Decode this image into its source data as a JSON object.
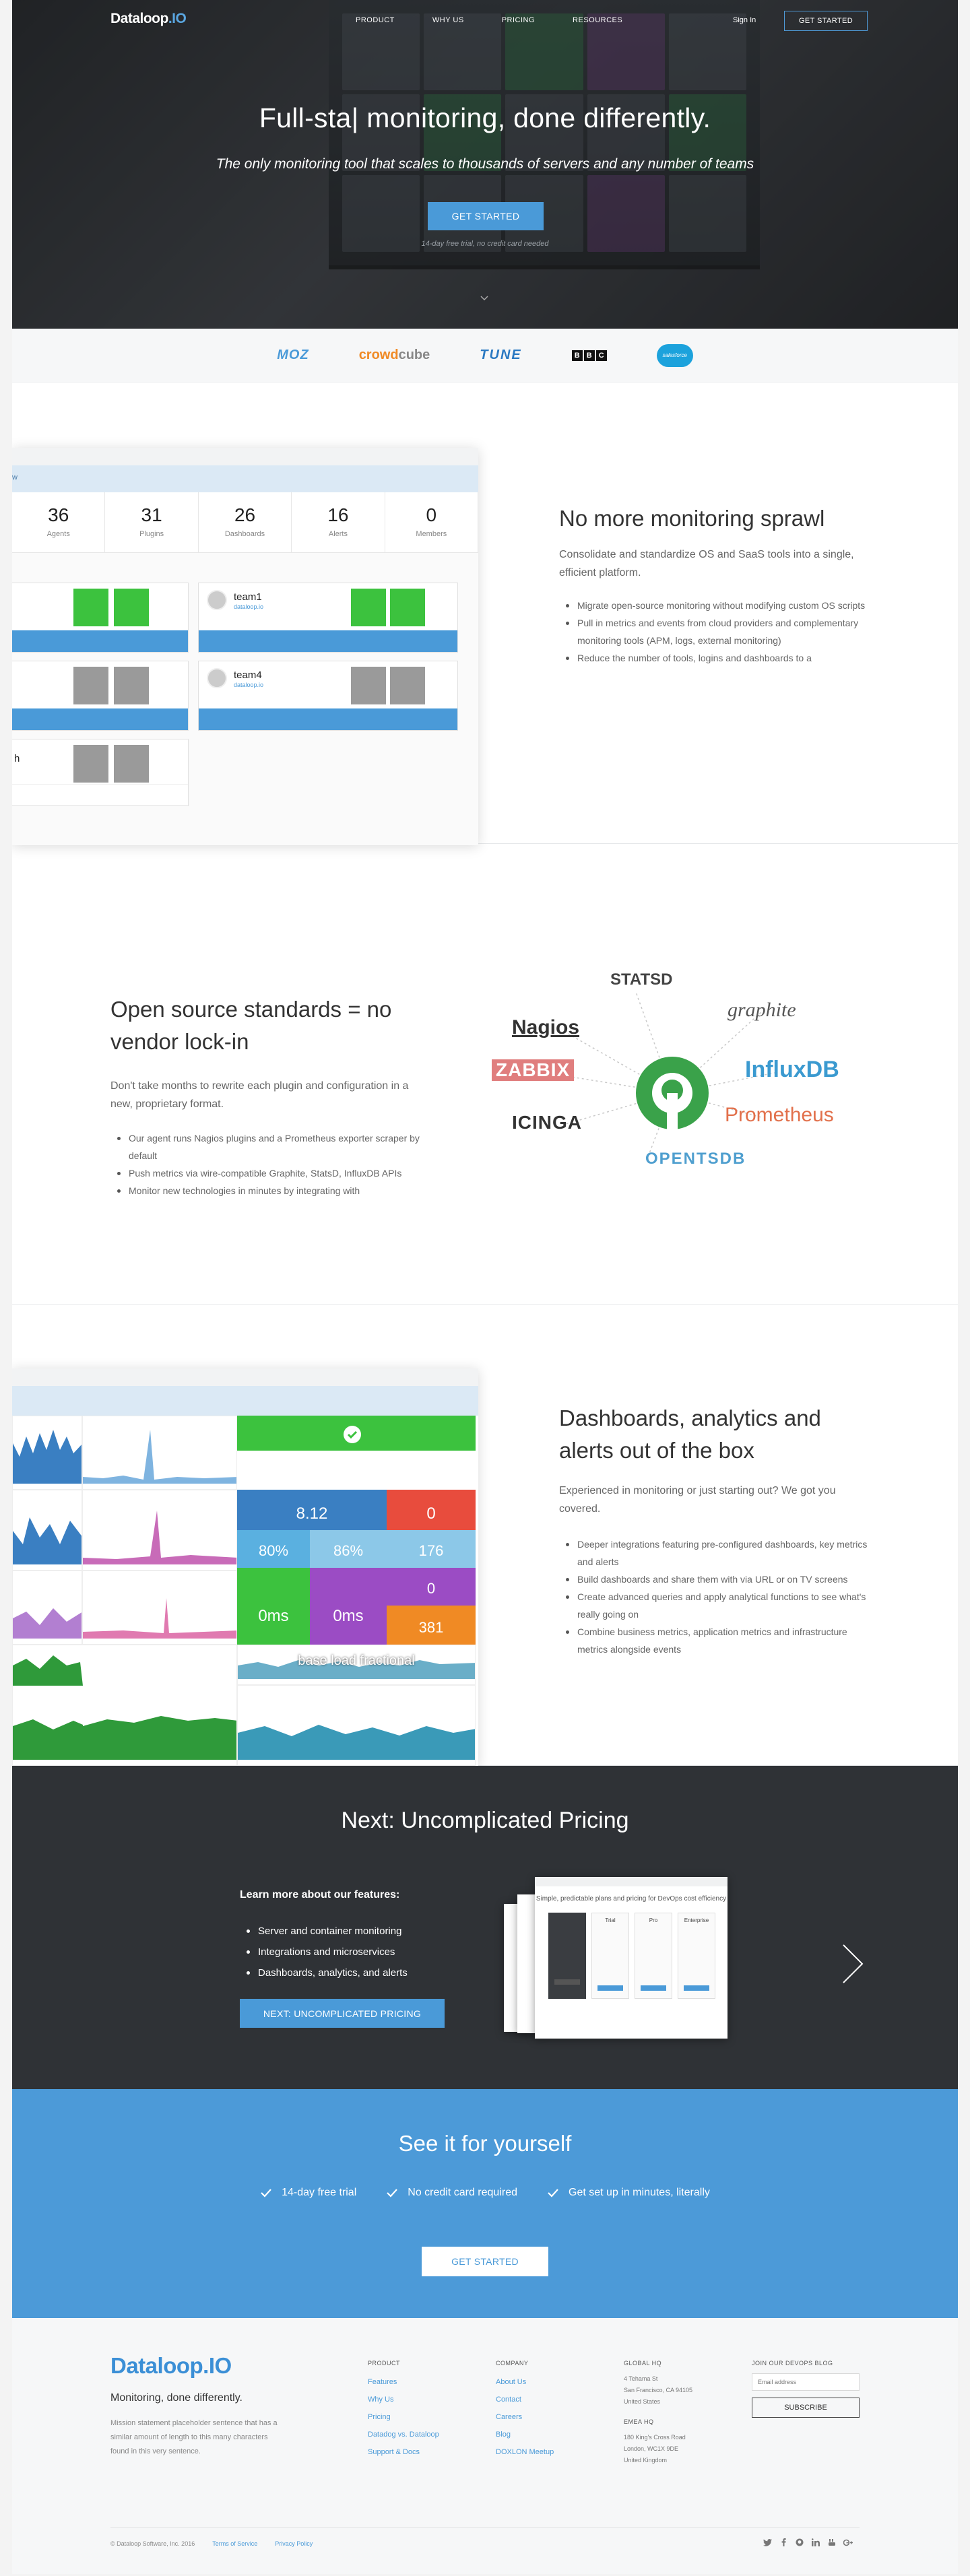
{
  "nav": {
    "logo_main": "Dataloop",
    "logo_io": ".IO",
    "links": [
      "PRODUCT",
      "WHY US",
      "PRICING",
      "RESOURCES"
    ],
    "signin": "Sign In",
    "cta": "GET STARTED"
  },
  "hero": {
    "title": "Full-sta| monitoring, done differently.",
    "subtitle": "The only monitoring tool that scales to thousands of servers and any number of teams",
    "cta": "GET STARTED",
    "note": "14-day free trial, no credit card needed"
  },
  "customers": {
    "moz": "MOZ",
    "crowdcube_a": "crowd",
    "crowdcube_b": "cube",
    "tune": "TUNE",
    "bbc": [
      "B",
      "B",
      "C"
    ],
    "salesforce": "salesforce"
  },
  "sprawl": {
    "panel_label": "w",
    "stats": [
      {
        "n": "36",
        "l": "Agents"
      },
      {
        "n": "31",
        "l": "Plugins"
      },
      {
        "n": "26",
        "l": "Dashboards"
      },
      {
        "n": "16",
        "l": "Alerts"
      },
      {
        "n": "0",
        "l": "Members"
      }
    ],
    "cards": [
      {
        "name": "team1",
        "sub": "dataloop.io"
      },
      {
        "name": "team4",
        "sub": "dataloop.io"
      },
      {
        "name": "h",
        "sub": ""
      }
    ],
    "title": "No more monitoring sprawl",
    "body": "Consolidate and standardize OS and SaaS tools into a single, efficient platform.",
    "bullets": [
      "Migrate open-source monitoring without modifying custom OS scripts",
      "Pull in metrics and events from cloud providers and complementary monitoring tools (APM, logs, external monitoring)",
      "Reduce the number of tools, logins and dashboards to a"
    ]
  },
  "oss": {
    "title": "Open source standards = no vendor lock-in",
    "body": "Don't take months to rewrite each plugin and configuration in a new, proprietary format.",
    "bullets": [
      "Our agent runs Nagios plugins and a Prometheus exporter scraper by default",
      "Push metrics via wire-compatible Graphite, StatsD, InfluxDB APIs",
      "Monitor new technologies in minutes by integrating with"
    ],
    "logos": {
      "statsd": "STATSD",
      "graphite": "graphite",
      "nagios": "Nagios",
      "zabbix": "ZABBIX",
      "influx": "InfluxDB",
      "icinga": "ICINGA",
      "prometheus": "Prometheus",
      "opentsdb": "OPENTSDB"
    }
  },
  "dash": {
    "title": "Dashboards, analytics and alerts out of the box",
    "body": "Experienced in monitoring or just starting out? We got you covered.",
    "bullets": [
      "Deeper integrations featuring pre-configured dashboards, key metrics and alerts",
      "Build dashboards and share them with via URL or on TV screens",
      "Create advanced queries and apply analytical functions to see what's really going on",
      "Combine business metrics, application metrics and infrastructure metrics alongside events"
    ],
    "tiles": {
      "t1": "8.12",
      "t2": "0",
      "t3": "80%",
      "t4": "86%",
      "t5": "176",
      "t6": "0ms",
      "t7": "0ms",
      "t8": "0",
      "t9": "381",
      "t10": "base load fractional"
    }
  },
  "next": {
    "title": "Next: Uncomplicated Pricing",
    "learn": "Learn more about our features:",
    "bullets": [
      "Server and container monitoring",
      "Integrations and microservices",
      "Dashboards, analytics, and alerts"
    ],
    "button": "NEXT: UNCOMPLICATED PRICING",
    "preview_title": "Simple, predictable plans and pricing for DevOps cost efficiency",
    "plans": [
      "Trial",
      "Pro",
      "Enterprise"
    ]
  },
  "band": {
    "title": "See it for yourself",
    "checks": [
      "14-day free trial",
      "No credit card required",
      "Get set up in minutes, literally"
    ],
    "button": "GET STARTED"
  },
  "footer": {
    "logo": "Dataloop.IO",
    "tagline": "Monitoring, done differently.",
    "mission": "Mission statement placeholder sentence that has a similar amount of length to this many characters found in this very sentence.",
    "product_h": "PRODUCT",
    "product": [
      "Features",
      "Why Us",
      "Pricing",
      "Datadog vs. Dataloop",
      "Support & Docs"
    ],
    "company_h": "COMPANY",
    "company": [
      "About Us",
      "Contact",
      "Careers",
      "Blog",
      "DOXLON Meetup"
    ],
    "hq_h": "GLOBAL HQ",
    "hq": [
      "4 Tehama St",
      "San Francisco, CA 94105",
      "United States"
    ],
    "emea_h": "EMEA HQ",
    "emea": [
      "180 King's Cross Road",
      "London, WC1X 9DE",
      "United Kingdom"
    ],
    "blog_h": "JOIN OUR DEVOPS BLOG",
    "email_placeholder": "Email address",
    "subscribe": "SUBSCRIBE",
    "copyright": "© Dataloop Software, Inc. 2016",
    "terms": "Terms of Service",
    "privacy": "Privacy Policy"
  }
}
